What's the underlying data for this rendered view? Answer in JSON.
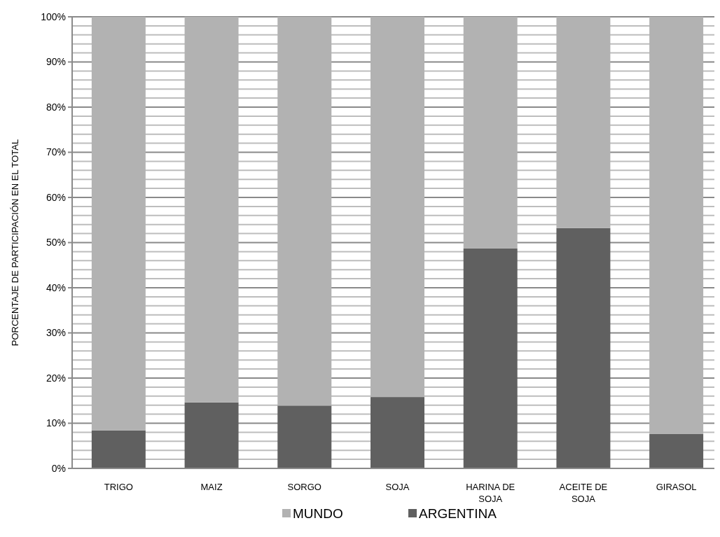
{
  "chart_data": {
    "type": "bar",
    "stacked": true,
    "ylabel": "PORCENTAJE DE PARTICIPACIÓN EN EL TOTAL",
    "categories": [
      "TRIGO",
      "MAIZ",
      "SORGO",
      "SOJA",
      "HARINA DE SOJA",
      "ACEITE DE SOJA",
      "GIRASOL"
    ],
    "series": [
      {
        "name": "ARGENTINA",
        "color": "#606060",
        "values": [
          8.4,
          14.6,
          13.9,
          15.8,
          48.7,
          53.2,
          7.6
        ]
      },
      {
        "name": "MUNDO",
        "color": "#b2b2b2",
        "values": [
          91.6,
          85.4,
          86.1,
          84.2,
          51.3,
          46.8,
          92.4
        ]
      }
    ],
    "ylim": [
      0,
      100
    ],
    "yticks": [
      {
        "value": 0,
        "label": "0%"
      },
      {
        "value": 2,
        "label": null
      },
      {
        "value": 4,
        "label": null
      },
      {
        "value": 6,
        "label": null
      },
      {
        "value": 8,
        "label": null
      },
      {
        "value": 10,
        "label": "10%"
      },
      {
        "value": 12,
        "label": null
      },
      {
        "value": 14,
        "label": null
      },
      {
        "value": 16,
        "label": null
      },
      {
        "value": 18,
        "label": null
      },
      {
        "value": 20,
        "label": "20%"
      },
      {
        "value": 22,
        "label": null
      },
      {
        "value": 24,
        "label": null
      },
      {
        "value": 26,
        "label": null
      },
      {
        "value": 28,
        "label": null
      },
      {
        "value": 30,
        "label": "30%"
      },
      {
        "value": 32,
        "label": null
      },
      {
        "value": 34,
        "label": null
      },
      {
        "value": 36,
        "label": null
      },
      {
        "value": 38,
        "label": null
      },
      {
        "value": 40,
        "label": "40%"
      },
      {
        "value": 42,
        "label": null
      },
      {
        "value": 44,
        "label": null
      },
      {
        "value": 46,
        "label": null
      },
      {
        "value": 48,
        "label": null
      },
      {
        "value": 50,
        "label": "50%"
      },
      {
        "value": 52,
        "label": null
      },
      {
        "value": 54,
        "label": null
      },
      {
        "value": 56,
        "label": null
      },
      {
        "value": 58,
        "label": null
      },
      {
        "value": 60,
        "label": "60%"
      },
      {
        "value": 62,
        "label": null
      },
      {
        "value": 64,
        "label": null
      },
      {
        "value": 66,
        "label": null
      },
      {
        "value": 68,
        "label": null
      },
      {
        "value": 70,
        "label": "70%"
      },
      {
        "value": 72,
        "label": null
      },
      {
        "value": 74,
        "label": null
      },
      {
        "value": 76,
        "label": null
      },
      {
        "value": 78,
        "label": null
      },
      {
        "value": 80,
        "label": "80%"
      },
      {
        "value": 82,
        "label": null
      },
      {
        "value": 84,
        "label": null
      },
      {
        "value": 86,
        "label": null
      },
      {
        "value": 88,
        "label": null
      },
      {
        "value": 90,
        "label": "90%"
      },
      {
        "value": 92,
        "label": null
      },
      {
        "value": 94,
        "label": null
      },
      {
        "value": 96,
        "label": null
      },
      {
        "value": 98,
        "label": null
      },
      {
        "value": 100,
        "label": "100%"
      }
    ],
    "grid": true,
    "legend": "bottom"
  }
}
